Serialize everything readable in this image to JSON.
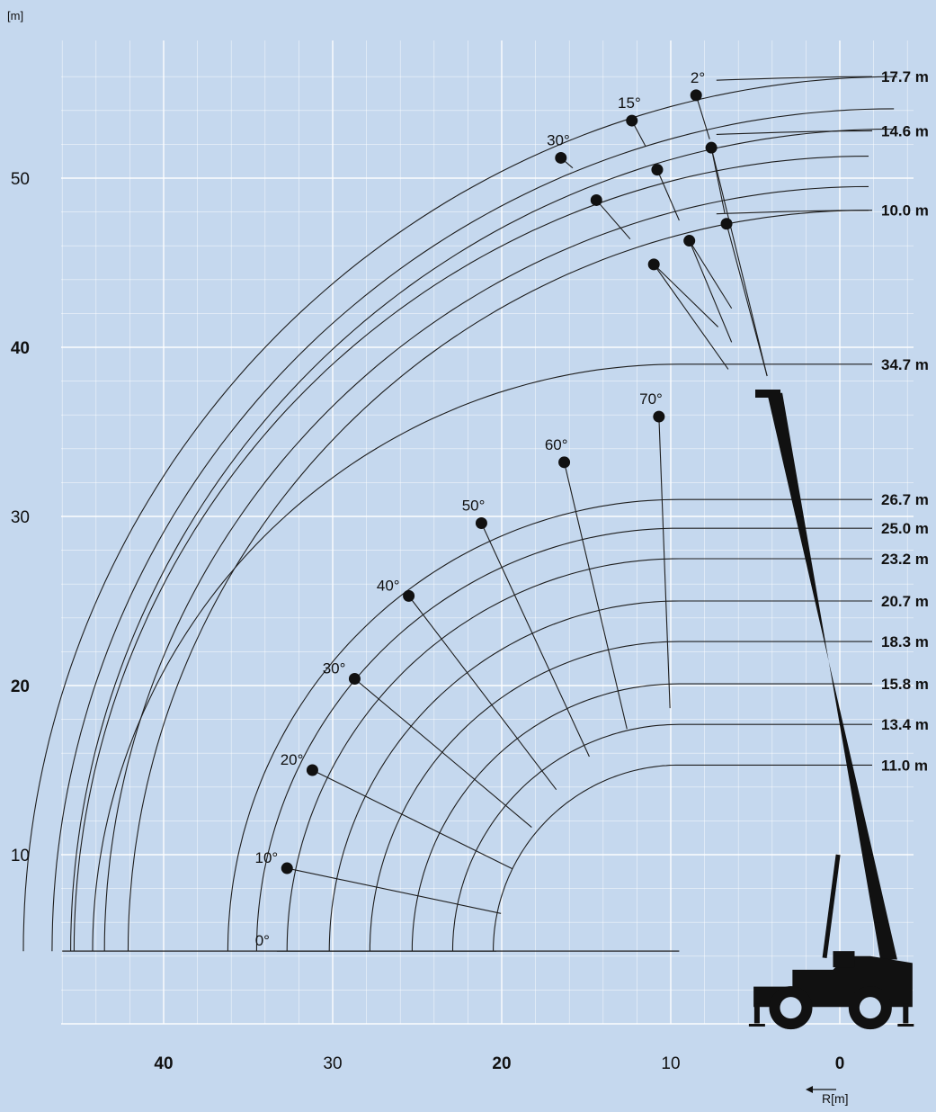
{
  "chart_data": {
    "type": "line",
    "title": "",
    "y_unit_label": "[m]",
    "x_unit_label": "R[m]",
    "x_axis": {
      "reversed": true,
      "ticks": [
        {
          "v": 40,
          "label": "40",
          "bold": true
        },
        {
          "v": 30,
          "label": "30",
          "bold": false
        },
        {
          "v": 20,
          "label": "20",
          "bold": true
        },
        {
          "v": 10,
          "label": "10",
          "bold": false
        },
        {
          "v": 0,
          "label": "0",
          "bold": true
        }
      ]
    },
    "y_axis": {
      "ticks": [
        {
          "v": 10,
          "label": "10",
          "bold": false
        },
        {
          "v": 20,
          "label": "20",
          "bold": true
        },
        {
          "v": 30,
          "label": "30",
          "bold": false
        },
        {
          "v": 40,
          "label": "40",
          "bold": true
        },
        {
          "v": 50,
          "label": "50",
          "bold": false
        }
      ]
    },
    "xlim": [
      46,
      -4
    ],
    "ylim": [
      0,
      57
    ],
    "grid": true,
    "colors": {
      "background": "#c5d8ee",
      "grid": "#ffffff",
      "line": "#1e1e1e",
      "crane": "#111111"
    },
    "main_boom": {
      "pivot": [
        9.5,
        4.3
      ],
      "arcs": [
        {
          "label": "11.0 m",
          "length": 11.0
        },
        {
          "label": "13.4 m",
          "length": 13.4
        },
        {
          "label": "15.8 m",
          "length": 15.8
        },
        {
          "label": "18.3 m",
          "length": 18.3
        },
        {
          "label": "20.7 m",
          "length": 20.7
        },
        {
          "label": "23.2 m",
          "length": 23.2
        },
        {
          "label": "25.0 m",
          "length": 25.0
        },
        {
          "label": "26.7 m",
          "length": 26.7
        },
        {
          "label": "34.7 m",
          "length": 34.7
        }
      ],
      "angle_points": [
        {
          "angle": 0,
          "label": "0°",
          "x": 33.3,
          "y": 4.3
        },
        {
          "angle": 10,
          "label": "10°",
          "x": 32.7,
          "y": 9.2
        },
        {
          "angle": 20,
          "label": "20°",
          "x": 31.2,
          "y": 15.0
        },
        {
          "angle": 30,
          "label": "30°",
          "x": 28.7,
          "y": 20.4
        },
        {
          "angle": 40,
          "label": "40°",
          "x": 25.5,
          "y": 25.3
        },
        {
          "angle": 50,
          "label": "50°",
          "x": 21.2,
          "y": 29.6
        },
        {
          "angle": 60,
          "label": "60°",
          "x": 16.3,
          "y": 33.2
        },
        {
          "angle": 70,
          "label": "70°",
          "x": 10.7,
          "y": 35.9
        }
      ]
    },
    "jib": {
      "arcs": [
        {
          "label": "10.0 m",
          "center": [
            1.3,
            4.3
          ],
          "radius": 43.8,
          "end": [
            -2.7,
            48.1
          ]
        },
        {
          "label": "14.6 m",
          "center": [
            -1.4,
            4.3
          ],
          "radius": 48.6,
          "end": [
            -2.7,
            52.8
          ]
        },
        {
          "label": "17.7 m",
          "center": [
            -2.3,
            4.3
          ],
          "radius": 51.7,
          "end": [
            -2.7,
            56.0
          ]
        }
      ],
      "bundle_arcs": [
        {
          "center": [
            -1.7,
            4.3
          ],
          "radius": 43.8
        },
        {
          "center": [
            -1.7,
            4.3
          ],
          "radius": 45.2
        },
        {
          "center": [
            -1.7,
            4.3
          ],
          "radius": 47.0
        },
        {
          "center": [
            -3.1,
            4.3
          ],
          "radius": 48.6
        },
        {
          "center": [
            -3.2,
            4.3
          ],
          "radius": 49.8
        },
        {
          "center": [
            -3.4,
            4.3
          ],
          "radius": 51.7
        }
      ],
      "offsets": [
        {
          "label": "2°",
          "x": 8.5,
          "y": 54.9
        },
        {
          "label": "15°",
          "x": 12.3,
          "y": 53.4
        },
        {
          "label": "30°",
          "x": 16.5,
          "y": 51.2
        }
      ],
      "points": [
        {
          "x": 8.5,
          "y": 54.9
        },
        {
          "x": 12.3,
          "y": 53.4
        },
        {
          "x": 16.5,
          "y": 51.2
        },
        {
          "x": 7.6,
          "y": 51.8
        },
        {
          "x": 10.8,
          "y": 50.5
        },
        {
          "x": 14.4,
          "y": 48.7
        },
        {
          "x": 6.7,
          "y": 47.3
        },
        {
          "x": 8.9,
          "y": 46.3
        },
        {
          "x": 11.0,
          "y": 44.9
        }
      ]
    }
  }
}
